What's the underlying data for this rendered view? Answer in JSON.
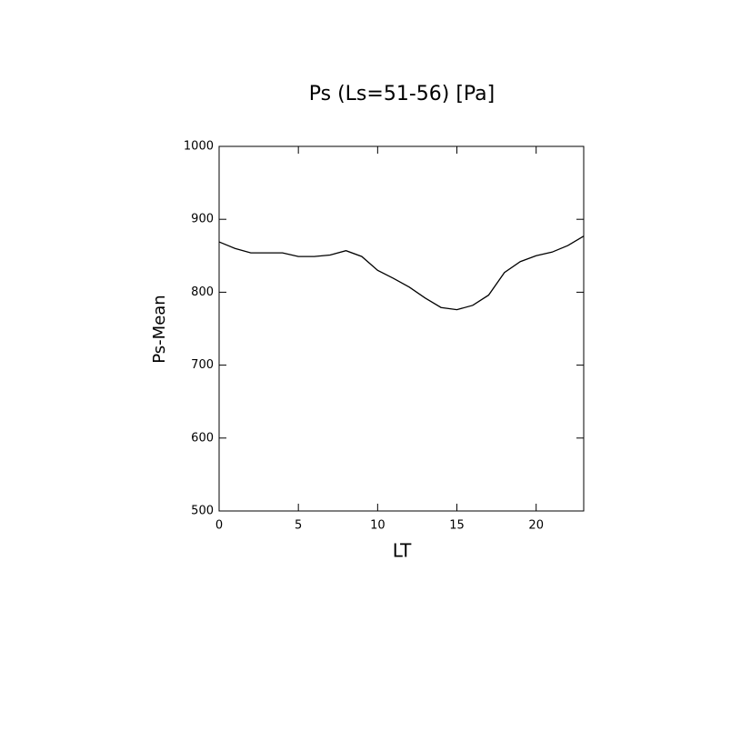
{
  "chart_data": {
    "type": "line",
    "title": "Ps (Ls=51-56) [Pa]",
    "xlabel": "LT",
    "ylabel": "Ps-Mean",
    "x": [
      0,
      1,
      2,
      3,
      4,
      5,
      6,
      7,
      8,
      9,
      10,
      11,
      12,
      13,
      14,
      15,
      16,
      17,
      18,
      19,
      20,
      21,
      22,
      23
    ],
    "series": [
      {
        "name": "Ps",
        "color": "#000000",
        "values": [
          869,
          860,
          854,
          854,
          854,
          849,
          849,
          851,
          857,
          849,
          830,
          819,
          807,
          792,
          779,
          776,
          782,
          796,
          827,
          842,
          850,
          855,
          864,
          877
        ]
      }
    ],
    "xlim": [
      0,
      23
    ],
    "xticks": [
      0,
      5,
      10,
      15,
      20
    ],
    "ylim": [
      500,
      1000
    ],
    "yticks": [
      500,
      600,
      700,
      800,
      900,
      1000
    ]
  }
}
